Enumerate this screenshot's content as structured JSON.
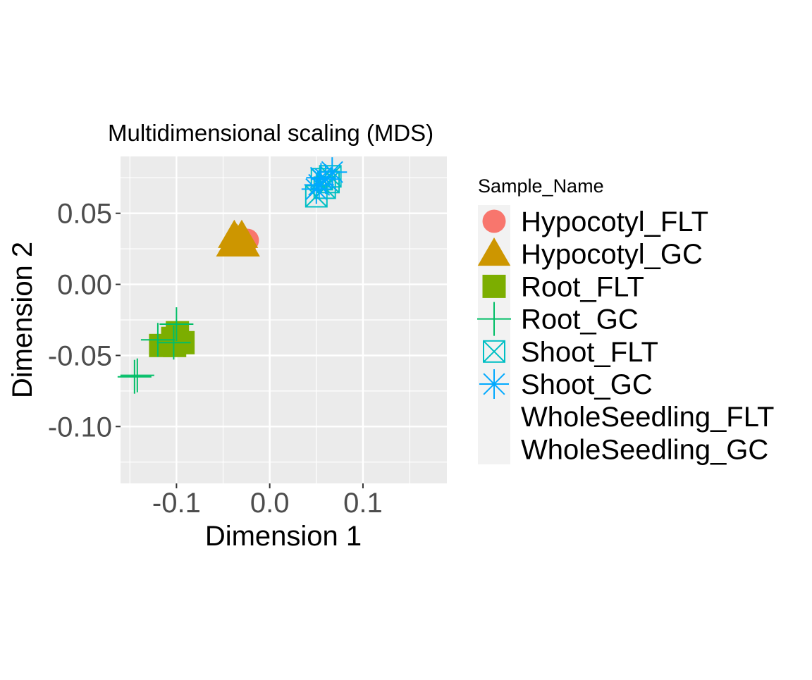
{
  "chart_data": {
    "type": "scatter",
    "title": "Multidimensional scaling (MDS)",
    "xlabel": "Dimension 1",
    "ylabel": "Dimension 2",
    "xlim": [
      -0.16,
      0.19
    ],
    "ylim": [
      -0.14,
      0.09
    ],
    "x_ticks": [
      -0.1,
      0.0,
      0.1
    ],
    "x_tick_labels": [
      "-0.1",
      "0.0",
      "0.1"
    ],
    "y_ticks": [
      0.05,
      0.0,
      -0.05,
      -0.1
    ],
    "y_tick_labels": [
      "0.05",
      "0.00",
      "-0.05",
      "-0.10"
    ],
    "grid": true,
    "legend_position": "right",
    "legend_title": "Sample_Name",
    "series": [
      {
        "name": "Hypocotyl_FLT",
        "shape": "circle",
        "color": "#F8766D",
        "points": [
          [
            -0.026,
            0.03
          ],
          [
            -0.024,
            0.031
          ],
          [
            -0.028,
            0.029
          ]
        ]
      },
      {
        "name": "Hypocotyl_GC",
        "shape": "triangle",
        "color": "#CD9600",
        "points": [
          [
            -0.038,
            0.034
          ],
          [
            -0.03,
            0.034
          ],
          [
            -0.04,
            0.028
          ],
          [
            -0.028,
            0.028
          ],
          [
            -0.035,
            0.031
          ]
        ]
      },
      {
        "name": "Root_FLT",
        "shape": "square",
        "color": "#7CAE00",
        "points": [
          [
            -0.117,
            -0.043
          ],
          [
            -0.102,
            -0.043
          ],
          [
            -0.093,
            -0.041
          ],
          [
            -0.104,
            -0.038
          ],
          [
            -0.099,
            -0.034
          ]
        ]
      },
      {
        "name": "Root_GC",
        "shape": "plus",
        "color": "#00BE67",
        "points": [
          [
            -0.1,
            -0.028
          ],
          [
            -0.103,
            -0.041
          ],
          [
            -0.12,
            -0.039
          ],
          [
            -0.142,
            -0.064
          ],
          [
            -0.145,
            -0.065
          ]
        ]
      },
      {
        "name": "Shoot_FLT",
        "shape": "square-cross",
        "color": "#00BFC4",
        "points": [
          [
            0.05,
            0.062
          ],
          [
            0.063,
            0.072
          ],
          [
            0.059,
            0.068
          ],
          [
            0.065,
            0.076
          ],
          [
            0.056,
            0.074
          ]
        ]
      },
      {
        "name": "Shoot_GC",
        "shape": "asterisk",
        "color": "#00A9FF",
        "points": [
          [
            0.053,
            0.07
          ],
          [
            0.067,
            0.079
          ],
          [
            0.06,
            0.074
          ],
          [
            0.055,
            0.075
          ],
          [
            0.05,
            0.067
          ]
        ]
      },
      {
        "name": "WholeSeedling_FLT",
        "shape": "none",
        "color": "#C77CFF",
        "points": []
      },
      {
        "name": "WholeSeedling_GC",
        "shape": "none",
        "color": "#FF61CC",
        "points": []
      }
    ]
  }
}
